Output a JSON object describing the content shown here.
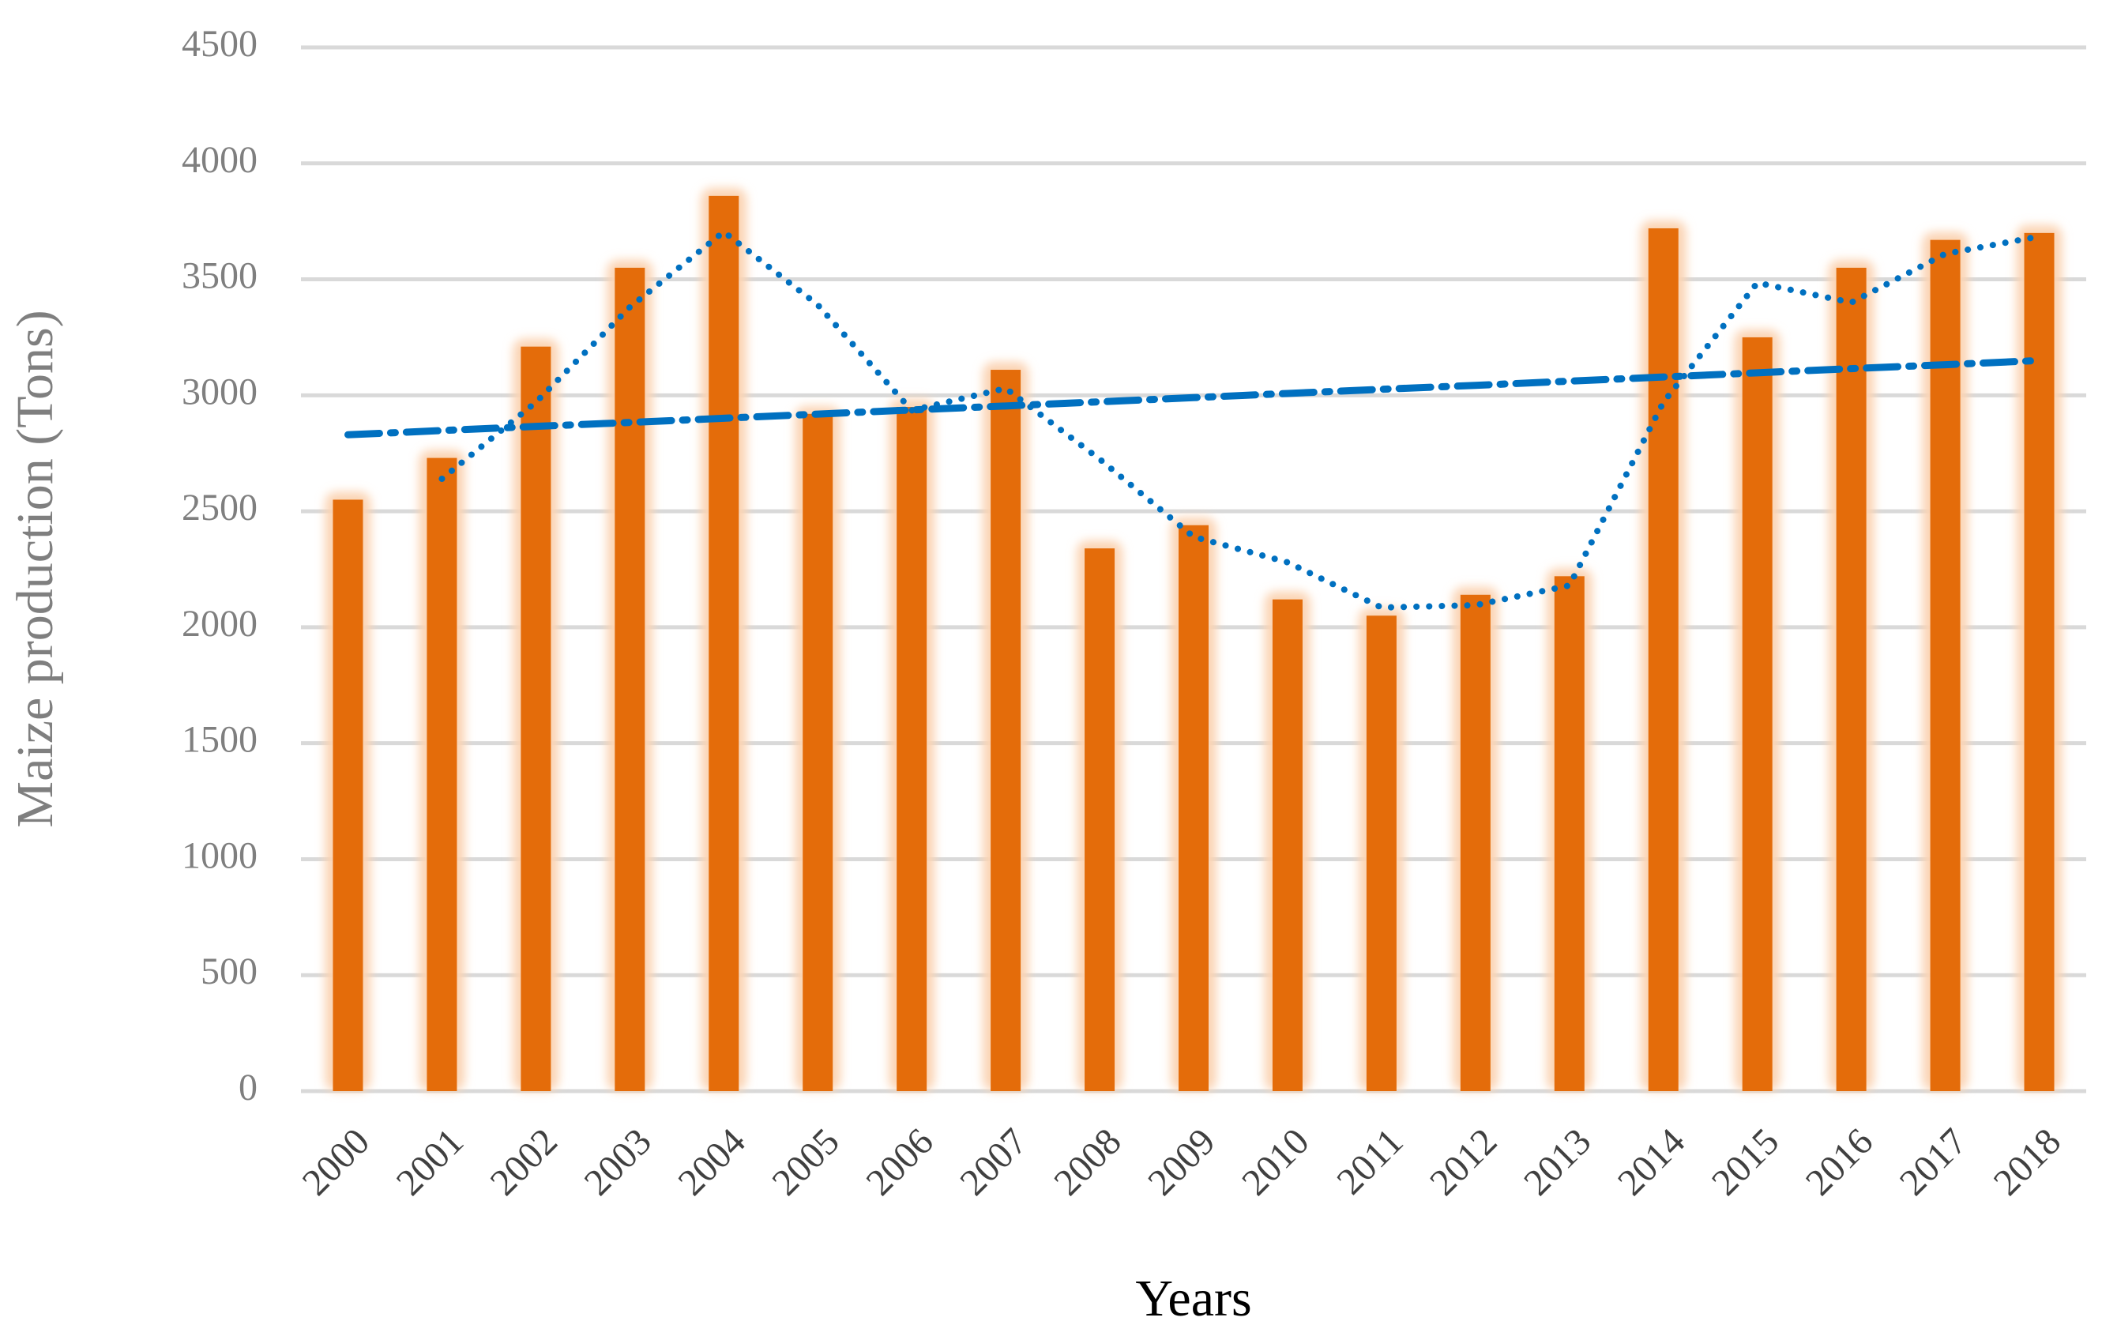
{
  "chart_data": {
    "type": "bar",
    "y_axis_label": "Maize production (Tons)",
    "x_axis_label": "Years",
    "categories": [
      "2000",
      "2001",
      "2002",
      "2003",
      "2004",
      "2005",
      "2006",
      "2007",
      "2008",
      "2009",
      "2010",
      "2011",
      "2012",
      "2013",
      "2014",
      "2015",
      "2016",
      "2017",
      "2018"
    ],
    "values": [
      2550,
      2730,
      3210,
      3550,
      3860,
      2920,
      2950,
      3110,
      2340,
      2440,
      2120,
      2050,
      2140,
      2220,
      3720,
      3250,
      3550,
      3670,
      3700
    ],
    "color": "#e46c0a",
    "glow_color": "#fbd4b4",
    "overlays": [
      {
        "style": "dotted",
        "color": "#0070c0",
        "values": [
          null,
          2640,
          2970,
          3380,
          3705,
          3390,
          2935,
          3030,
          2725,
          2390,
          2280,
          2085,
          2095,
          2180,
          2970,
          3485,
          3400,
          3610,
          3685
        ]
      },
      {
        "style": "dash-dot",
        "color": "#0070c0",
        "values": [
          2830,
          2848,
          2866,
          2883,
          2901,
          2919,
          2937,
          2954,
          2972,
          2990,
          3008,
          3026,
          3043,
          3061,
          3079,
          3097,
          3115,
          3132,
          3150
        ]
      }
    ],
    "ylim": [
      0,
      4500
    ],
    "yticks": [
      0,
      500,
      1000,
      1500,
      2000,
      2500,
      3000,
      3500,
      4000,
      4500
    ],
    "grid": true
  }
}
